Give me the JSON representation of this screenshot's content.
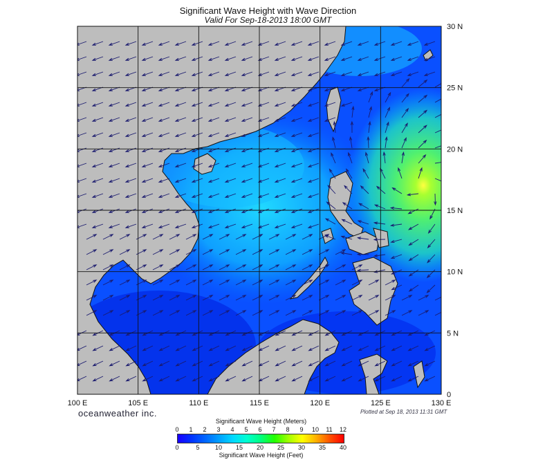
{
  "title": "Significant Wave Height with Wave Direction",
  "subtitle": "Valid For Sep-18-2013 18:00 GMT",
  "brand": "oceanweather inc.",
  "plotted": "Plotted at Sep 18, 2013 11:31 GMT",
  "map": {
    "lon_min": 100,
    "lon_max": 130,
    "lat_min": 0,
    "lat_max": 30,
    "lon_ticks": [
      "100 E",
      "105 E",
      "110 E",
      "115 E",
      "120 E",
      "125 E",
      "130 E"
    ],
    "lat_ticks": [
      "0",
      "5 N",
      "10 N",
      "15 N",
      "20 N",
      "25 N",
      "30 N"
    ],
    "colors": {
      "land": "#bdbdbd",
      "coast": "#111111",
      "grid": "#111111",
      "arrow": "#1a1a6e"
    }
  },
  "legend": {
    "title_meters": "Significant Wave Height (Meters)",
    "title_feet": "Significant Wave Height (Feet)",
    "meters_ticks": [
      "0",
      "1",
      "2",
      "3",
      "4",
      "5",
      "6",
      "7",
      "8",
      "9",
      "10",
      "11",
      "12"
    ],
    "feet_ticks": [
      "0",
      "5",
      "10",
      "15",
      "20",
      "25",
      "30",
      "35",
      "40"
    ],
    "colors": [
      "#1a00ff",
      "#0033ff",
      "#0066ff",
      "#00a0ff",
      "#00d8ff",
      "#00ffd0",
      "#00ff80",
      "#22ff00",
      "#a0ff00",
      "#ffff00",
      "#ffb000",
      "#ff5000",
      "#ff0000"
    ]
  }
}
